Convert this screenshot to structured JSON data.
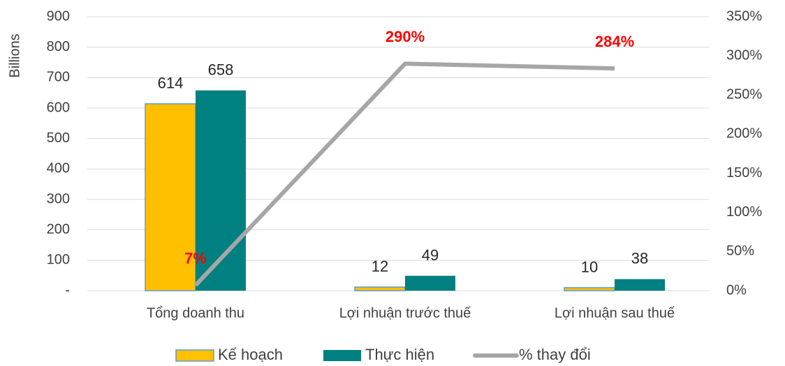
{
  "chart_data": {
    "type": "bar",
    "ylabel": "Billions",
    "categories": [
      "Tổng doanh thu",
      "Lợi nhuận trước thuế",
      "Lợi nhuận sau thuế"
    ],
    "series": [
      {
        "name": "Kế hoạch",
        "type": "bar",
        "color": "#ffc000",
        "edgecolor": "#5b9bd5",
        "values": [
          614,
          12,
          10
        ]
      },
      {
        "name": "Thực hiện",
        "type": "bar",
        "color": "#008080",
        "values": [
          658,
          49,
          38
        ]
      },
      {
        "name": "% thay đổi",
        "type": "line",
        "axis": "y2",
        "color": "#a6a6a6",
        "label_color": "#ff0000",
        "values": [
          7,
          290,
          284
        ],
        "value_labels": [
          "7%",
          "290%",
          "284%"
        ]
      }
    ],
    "ylim": [
      0,
      900
    ],
    "yticks": [
      {
        "value": 0,
        "label": "-"
      },
      100,
      200,
      300,
      400,
      500,
      600,
      700,
      800,
      900
    ],
    "y2lim": [
      0,
      350
    ],
    "y2ticks": [
      {
        "value": 0,
        "label": "0%"
      },
      {
        "value": 50,
        "label": "50%"
      },
      {
        "value": 100,
        "label": "100%"
      },
      {
        "value": 150,
        "label": "150%"
      },
      {
        "value": 200,
        "label": "200%"
      },
      {
        "value": 250,
        "label": "250%"
      },
      {
        "value": 300,
        "label": "300%"
      },
      {
        "value": 350,
        "label": "350%"
      }
    ],
    "grid": true,
    "legend": "bottom"
  }
}
